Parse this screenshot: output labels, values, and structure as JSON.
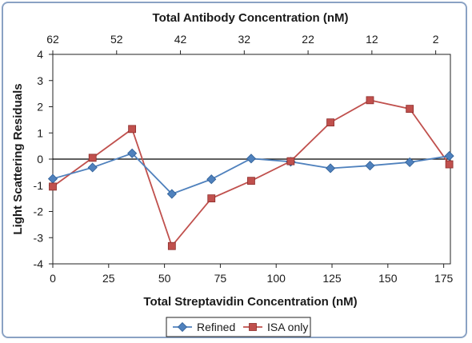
{
  "chart_data": {
    "type": "line",
    "xlabel": "Total Streptavidin Concentration (nM)",
    "x2label": "Total Antibody Concentration (nM)",
    "ylabel": "Light Scattering Residuals",
    "xlim": [
      0,
      178
    ],
    "ylim": [
      -4,
      4
    ],
    "x_ticks": [
      "0",
      "25",
      "50",
      "75",
      "100",
      "125",
      "150",
      "175"
    ],
    "x_tick_values": [
      0,
      25,
      50,
      75,
      100,
      125,
      150,
      175
    ],
    "x2_ticks": [
      "62",
      "52",
      "42",
      "32",
      "22",
      "12",
      "2"
    ],
    "x2_tick_values": [
      62,
      52,
      42,
      32,
      22,
      12,
      2
    ],
    "x2_axis_map": {
      "x_at_62": 0,
      "per_unit": -2.857
    },
    "y_ticks": [
      "-4",
      "-3",
      "-2",
      "-1",
      "0",
      "1",
      "2",
      "3",
      "4"
    ],
    "y_tick_values": [
      -4,
      -3,
      -2,
      -1,
      0,
      1,
      2,
      3,
      4
    ],
    "grid": false,
    "legend_position": "bottom",
    "series": [
      {
        "name": "Refined",
        "color": "#4f81bd",
        "marker": "diamond",
        "x": [
          0,
          17.8,
          35.5,
          53.3,
          71,
          88.8,
          106.5,
          124.3,
          142,
          159.8,
          177.5
        ],
        "y": [
          -0.75,
          -0.32,
          0.22,
          -1.33,
          -0.77,
          0.02,
          -0.1,
          -0.35,
          -0.25,
          -0.12,
          0.12
        ]
      },
      {
        "name": "ISA only",
        "color": "#c0504d",
        "marker": "square",
        "x": [
          0,
          17.8,
          35.5,
          53.3,
          71,
          88.8,
          106.5,
          124.3,
          142,
          159.8,
          177.5
        ],
        "y": [
          -1.05,
          0.05,
          1.15,
          -3.32,
          -1.5,
          -0.83,
          -0.08,
          1.4,
          2.25,
          1.92,
          -0.2
        ]
      }
    ]
  }
}
